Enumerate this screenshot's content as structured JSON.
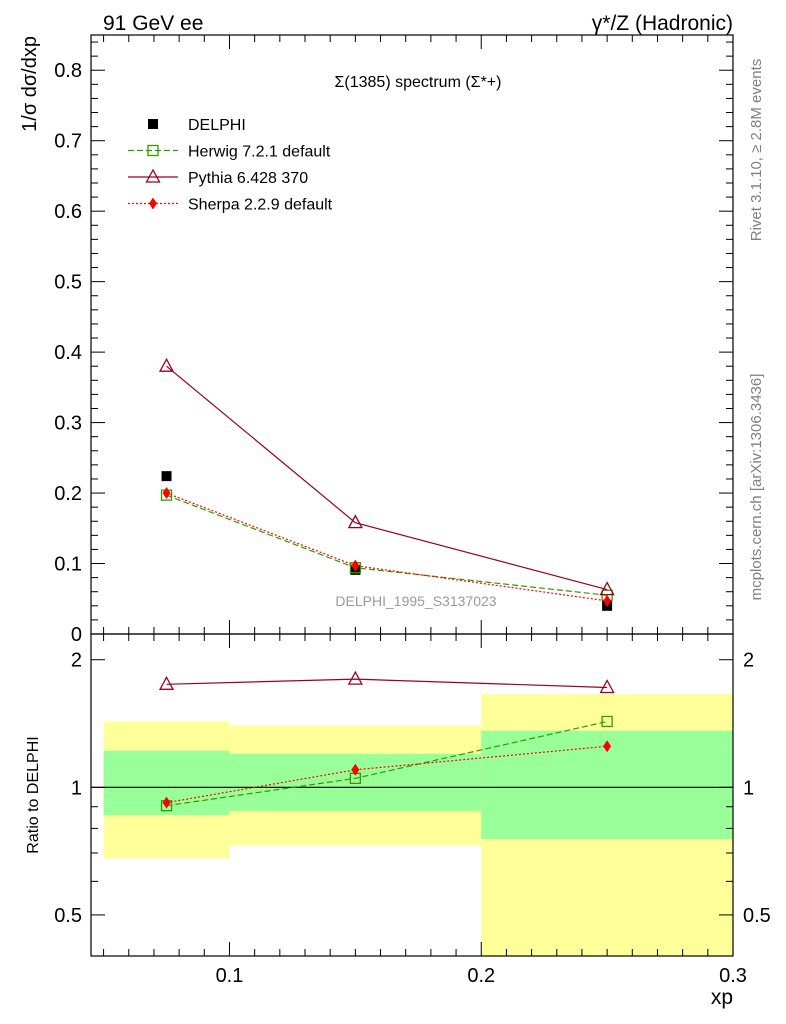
{
  "header": {
    "left": "91 GeV ee",
    "right": "γ*/Z (Hadronic)"
  },
  "side_labels": {
    "top": "Rivet 3.1.10, ≥ 2.8M events",
    "bottom": "mcplots.cern.ch [arXiv:1306.3436]"
  },
  "chart_data": [
    {
      "type": "line",
      "title": "Σ(1385) spectrum (Σ*+)",
      "watermark": "DELPHI_1995_S3137023",
      "xlabel": "xp",
      "ylabel": "1/σ dσ/dxp",
      "xlim": [
        0.045,
        0.3
      ],
      "ylim": [
        0,
        0.85
      ],
      "yticks": [
        0,
        0.1,
        0.2,
        0.3,
        0.4,
        0.5,
        0.6,
        0.7,
        0.8
      ],
      "ytick_labels": [
        "0",
        "0.1",
        "0.2",
        "0.3",
        "0.4",
        "0.5",
        "0.6",
        "0.7",
        "0.8"
      ],
      "legend_position": "top-left",
      "x": [
        0.075,
        0.15,
        0.25
      ],
      "series": [
        {
          "name": "DELPHI",
          "values": [
            0.224,
            0.091,
            0.04
          ],
          "color": "#000000",
          "marker": "filled-square",
          "line": "none"
        },
        {
          "name": "Herwig 7.2.1 default",
          "values": [
            0.197,
            0.094,
            0.055
          ],
          "color": "#339900",
          "marker": "open-square",
          "line": "dashed"
        },
        {
          "name": "Pythia 6.428 370",
          "values": [
            0.38,
            0.158,
            0.063
          ],
          "color": "#990022",
          "marker": "open-triangle",
          "line": "solid"
        },
        {
          "name": "Sherpa 2.2.9 default",
          "values": [
            0.2,
            0.097,
            0.047
          ],
          "color": "#ff0000",
          "marker": "filled-diamond",
          "line": "dotted"
        }
      ]
    },
    {
      "type": "line",
      "ylabel": "Ratio to DELPHI",
      "xlabel": "xp",
      "xlim": [
        0.045,
        0.3
      ],
      "ylim": [
        0.4,
        2.3
      ],
      "log_y": true,
      "yticks": [
        0.5,
        1,
        2
      ],
      "ytick_labels": [
        "0.5",
        "1",
        "2"
      ],
      "xticks": [
        0.1,
        0.2,
        0.3
      ],
      "xtick_labels": [
        "0.1",
        "0.2",
        "0.3"
      ],
      "reference_line": 1,
      "bands": [
        {
          "x_low": 0.05,
          "x_high": 0.1,
          "inner": [
            0.86,
            1.22
          ],
          "outer": [
            0.68,
            1.43
          ]
        },
        {
          "x_low": 0.1,
          "x_high": 0.2,
          "inner": [
            0.88,
            1.2
          ],
          "outer": [
            0.73,
            1.4
          ]
        },
        {
          "x_low": 0.2,
          "x_high": 0.3,
          "inner": [
            0.755,
            1.36
          ],
          "outer": [
            0.37,
            1.66
          ]
        }
      ],
      "band_colors": {
        "inner": "#99ff99",
        "outer": "#ffff99"
      },
      "x": [
        0.075,
        0.15,
        0.25
      ],
      "series": [
        {
          "name": "Herwig 7.2.1 default",
          "values": [
            0.905,
            1.05,
            1.43
          ],
          "color": "#339900",
          "marker": "open-square",
          "line": "dashed"
        },
        {
          "name": "Pythia 6.428 370",
          "values": [
            1.75,
            1.8,
            1.72
          ],
          "color": "#990022",
          "marker": "open-triangle",
          "line": "solid"
        },
        {
          "name": "Sherpa 2.2.9 default",
          "values": [
            0.92,
            1.1,
            1.25
          ],
          "color": "#ff0000",
          "marker": "filled-diamond",
          "line": "dotted"
        }
      ]
    }
  ]
}
